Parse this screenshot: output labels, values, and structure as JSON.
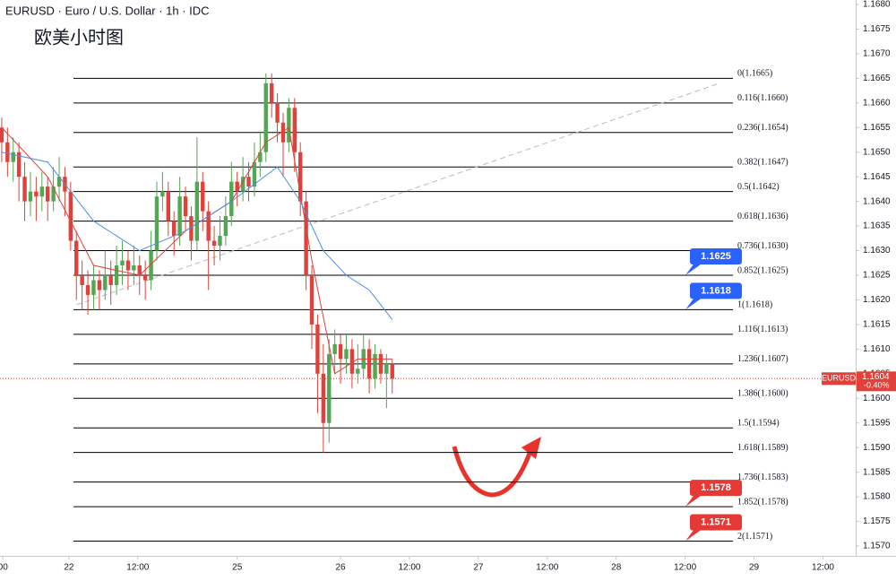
{
  "chart_data": {
    "type": "candlestick",
    "title": "EURUSD · Euro / U.S. Dollar · 1h · IDC",
    "annotation": "欧美小时图",
    "up_color": "#53a653",
    "down_color": "#e0413a",
    "x": [
      0,
      1,
      2,
      3,
      4,
      5,
      6,
      7,
      8,
      9,
      10,
      11,
      12,
      13,
      14,
      15,
      16,
      17,
      18,
      19,
      20,
      21,
      22,
      23,
      24,
      25,
      26,
      27,
      28,
      29,
      30,
      31,
      32,
      33,
      34,
      35,
      36,
      37,
      38,
      39,
      40,
      41,
      42,
      43,
      44,
      45,
      46,
      47,
      48,
      49,
      50,
      51,
      52,
      53,
      54,
      55,
      56,
      57,
      58,
      59,
      60,
      61,
      62,
      63,
      64,
      65,
      66,
      67,
      68
    ],
    "open": [
      1.1655,
      1.1652,
      1.1648,
      1.165,
      1.1645,
      1.164,
      1.1642,
      1.1641,
      1.1643,
      1.164,
      1.1643,
      1.1645,
      1.1642,
      1.1632,
      1.1625,
      1.1623,
      1.1621,
      1.1624,
      1.1622,
      1.1625,
      1.1623,
      1.1627,
      1.1628,
      1.1626,
      1.1627,
      1.1625,
      1.1624,
      1.163,
      1.1641,
      1.1642,
      1.1636,
      1.1633,
      1.1641,
      1.1637,
      1.1632,
      1.1644,
      1.1638,
      1.1632,
      1.1631,
      1.1633,
      1.1637,
      1.1644,
      1.1642,
      1.1645,
      1.1643,
      1.1648,
      1.165,
      1.1664,
      1.166,
      1.1656,
      1.1652,
      1.1659,
      1.165,
      1.164,
      1.1625,
      1.1615,
      1.1605,
      1.1595,
      1.1609,
      1.1611,
      1.1608,
      1.161,
      1.1605,
      1.1606,
      1.161,
      1.1604,
      1.1609,
      1.1605,
      1.1607
    ],
    "high": [
      1.1657,
      1.1655,
      1.1653,
      1.1652,
      1.1648,
      1.1646,
      1.1645,
      1.1646,
      1.1645,
      1.1647,
      1.1649,
      1.1647,
      1.1644,
      1.1634,
      1.1628,
      1.1626,
      1.1627,
      1.1626,
      1.163,
      1.1628,
      1.1631,
      1.1632,
      1.163,
      1.1631,
      1.1629,
      1.1628,
      1.1634,
      1.1644,
      1.1646,
      1.1644,
      1.1638,
      1.1645,
      1.1643,
      1.1639,
      1.1653,
      1.1646,
      1.164,
      1.1635,
      1.1637,
      1.1641,
      1.1648,
      1.1646,
      1.1649,
      1.1648,
      1.1652,
      1.1654,
      1.1666,
      1.1666,
      1.1662,
      1.1658,
      1.1661,
      1.1661,
      1.1652,
      1.1642,
      1.1627,
      1.1617,
      1.1611,
      1.1612,
      1.1614,
      1.1613,
      1.1613,
      1.1612,
      1.1611,
      1.1613,
      1.1612,
      1.1611,
      1.161,
      1.1609,
      1.1608
    ],
    "low": [
      1.1648,
      1.1645,
      1.1644,
      1.164,
      1.1636,
      1.1637,
      1.1636,
      1.1638,
      1.1636,
      1.1638,
      1.164,
      1.1637,
      1.163,
      1.162,
      1.1618,
      1.1617,
      1.1618,
      1.1618,
      1.162,
      1.1619,
      1.1621,
      1.1623,
      1.1622,
      1.1623,
      1.1621,
      1.162,
      1.1622,
      1.1628,
      1.1638,
      1.1633,
      1.1629,
      1.1631,
      1.1634,
      1.1628,
      1.163,
      1.1634,
      1.1622,
      1.1627,
      1.1628,
      1.1631,
      1.1635,
      1.1639,
      1.164,
      1.164,
      1.1641,
      1.1645,
      1.1648,
      1.1657,
      1.1652,
      1.1645,
      1.165,
      1.1646,
      1.1637,
      1.1622,
      1.161,
      1.1597,
      1.1589,
      1.1591,
      1.1605,
      1.1603,
      1.1605,
      1.1602,
      1.1603,
      1.1604,
      1.1601,
      1.1602,
      1.1603,
      1.1598,
      1.1601
    ],
    "close": [
      1.1652,
      1.1648,
      1.165,
      1.1645,
      1.164,
      1.1642,
      1.1641,
      1.1643,
      1.164,
      1.1643,
      1.1645,
      1.1642,
      1.1632,
      1.1625,
      1.1623,
      1.1621,
      1.1624,
      1.1622,
      1.1625,
      1.1623,
      1.1627,
      1.1628,
      1.1626,
      1.1627,
      1.1625,
      1.1624,
      1.163,
      1.1641,
      1.1642,
      1.1636,
      1.1633,
      1.1641,
      1.1637,
      1.1632,
      1.1644,
      1.1638,
      1.1632,
      1.1631,
      1.1633,
      1.1637,
      1.1644,
      1.1642,
      1.1645,
      1.1643,
      1.1648,
      1.165,
      1.1664,
      1.166,
      1.1656,
      1.1652,
      1.1659,
      1.165,
      1.164,
      1.1625,
      1.1615,
      1.1605,
      1.1595,
      1.1609,
      1.1611,
      1.1608,
      1.161,
      1.1605,
      1.1606,
      1.161,
      1.1604,
      1.1609,
      1.1605,
      1.1607,
      1.1604
    ],
    "lines": [
      {
        "color": "#e0413a",
        "x": [
          0,
          8,
          16,
          24,
          32,
          40,
          46,
          50,
          54,
          58,
          62,
          68
        ],
        "values": [
          1.1655,
          1.1645,
          1.1627,
          1.1625,
          1.1634,
          1.164,
          1.1652,
          1.1655,
          1.1628,
          1.1605,
          1.1608,
          1.1608
        ]
      },
      {
        "color": "#4a90e2",
        "x": [
          0,
          8,
          16,
          24,
          32,
          40,
          48,
          52,
          56,
          60,
          64,
          68
        ],
        "values": [
          1.165,
          1.1648,
          1.1636,
          1.163,
          1.1634,
          1.164,
          1.1647,
          1.164,
          1.163,
          1.1625,
          1.1622,
          1.1616
        ]
      }
    ],
    "trendline": {
      "x": [
        13,
        125
      ],
      "values": [
        1.1619,
        1.1664
      ]
    },
    "fib_levels": [
      {
        "value": 1.1665,
        "label": "0(1.1665)"
      },
      {
        "value": 1.166,
        "label": "0.116(1.1660)"
      },
      {
        "value": 1.1654,
        "label": "0.236(1.1654)"
      },
      {
        "value": 1.1647,
        "label": "0.382(1.1647)"
      },
      {
        "value": 1.1642,
        "label": "0.5(1.1642)"
      },
      {
        "value": 1.1636,
        "label": "0.618(1.1636)"
      },
      {
        "value": 1.163,
        "label": "0.736(1.1630)"
      },
      {
        "value": 1.1625,
        "label": "0.852(1.1625)"
      },
      {
        "value": 1.1618,
        "label": "1(1.1618)"
      },
      {
        "value": 1.1613,
        "label": "1.116(1.1613)"
      },
      {
        "value": 1.1607,
        "label": "1.236(1.1607)"
      },
      {
        "value": 1.16,
        "label": "1.386(1.1600)"
      },
      {
        "value": 1.1594,
        "label": "1.5(1.1594)"
      },
      {
        "value": 1.1589,
        "label": "1.618(1.1589)"
      },
      {
        "value": 1.1583,
        "label": "1.736(1.1583)"
      },
      {
        "value": 1.1578,
        "label": "1.852(1.1578)"
      },
      {
        "value": 1.1571,
        "label": "2(1.1571)"
      }
    ],
    "callouts": [
      {
        "value": 1.1625,
        "color": "#2962ff"
      },
      {
        "value": 1.1618,
        "color": "#2962ff"
      },
      {
        "value": 1.1578,
        "color": "#e53935"
      },
      {
        "value": 1.1571,
        "color": "#e53935"
      }
    ],
    "last_price": {
      "symbol": "EURUSD",
      "value": 1.1604,
      "change_label": "-0.40%",
      "color": "#e0413a"
    },
    "xlim": [
      -0.3,
      148.7
    ],
    "xticks": [
      {
        "value": 0.2,
        "label": "00"
      },
      {
        "value": 11.7,
        "label": "22"
      },
      {
        "value": 23.7,
        "label": "12:00"
      },
      {
        "value": 41,
        "label": "25"
      },
      {
        "value": 59,
        "label": "26"
      },
      {
        "value": 71,
        "label": "12:00"
      },
      {
        "value": 83,
        "label": "27"
      },
      {
        "value": 95,
        "label": "12:00"
      },
      {
        "value": 107,
        "label": "28"
      },
      {
        "value": 119,
        "label": "12:00"
      },
      {
        "value": 131,
        "label": "29"
      },
      {
        "value": 143,
        "label": "12:00"
      }
    ],
    "ylim": [
      1.157,
      1.168
    ],
    "yticks": [
      {
        "value": 1.157,
        "label": "1.1570"
      },
      1.1575,
      {
        "value": 1.158,
        "label": "1.1580"
      },
      1.1585,
      {
        "value": 1.159,
        "label": "1.1590"
      },
      1.1595,
      {
        "value": 1.16,
        "label": "1.1600"
      },
      1.1605,
      {
        "value": 1.161,
        "label": "1.1610"
      },
      1.1615,
      {
        "value": 1.162,
        "label": "1.1620"
      },
      1.1625,
      {
        "value": 1.163,
        "label": "1.1630"
      },
      1.1635,
      {
        "value": 1.164,
        "label": "1.1640"
      },
      1.1645,
      {
        "value": 1.165,
        "label": "1.1650"
      },
      1.1655,
      {
        "value": 1.166,
        "label": "1.1660"
      },
      1.1665,
      {
        "value": 1.167,
        "label": "1.1670"
      },
      1.1675,
      {
        "value": 1.168,
        "label": "1.1680"
      }
    ]
  }
}
